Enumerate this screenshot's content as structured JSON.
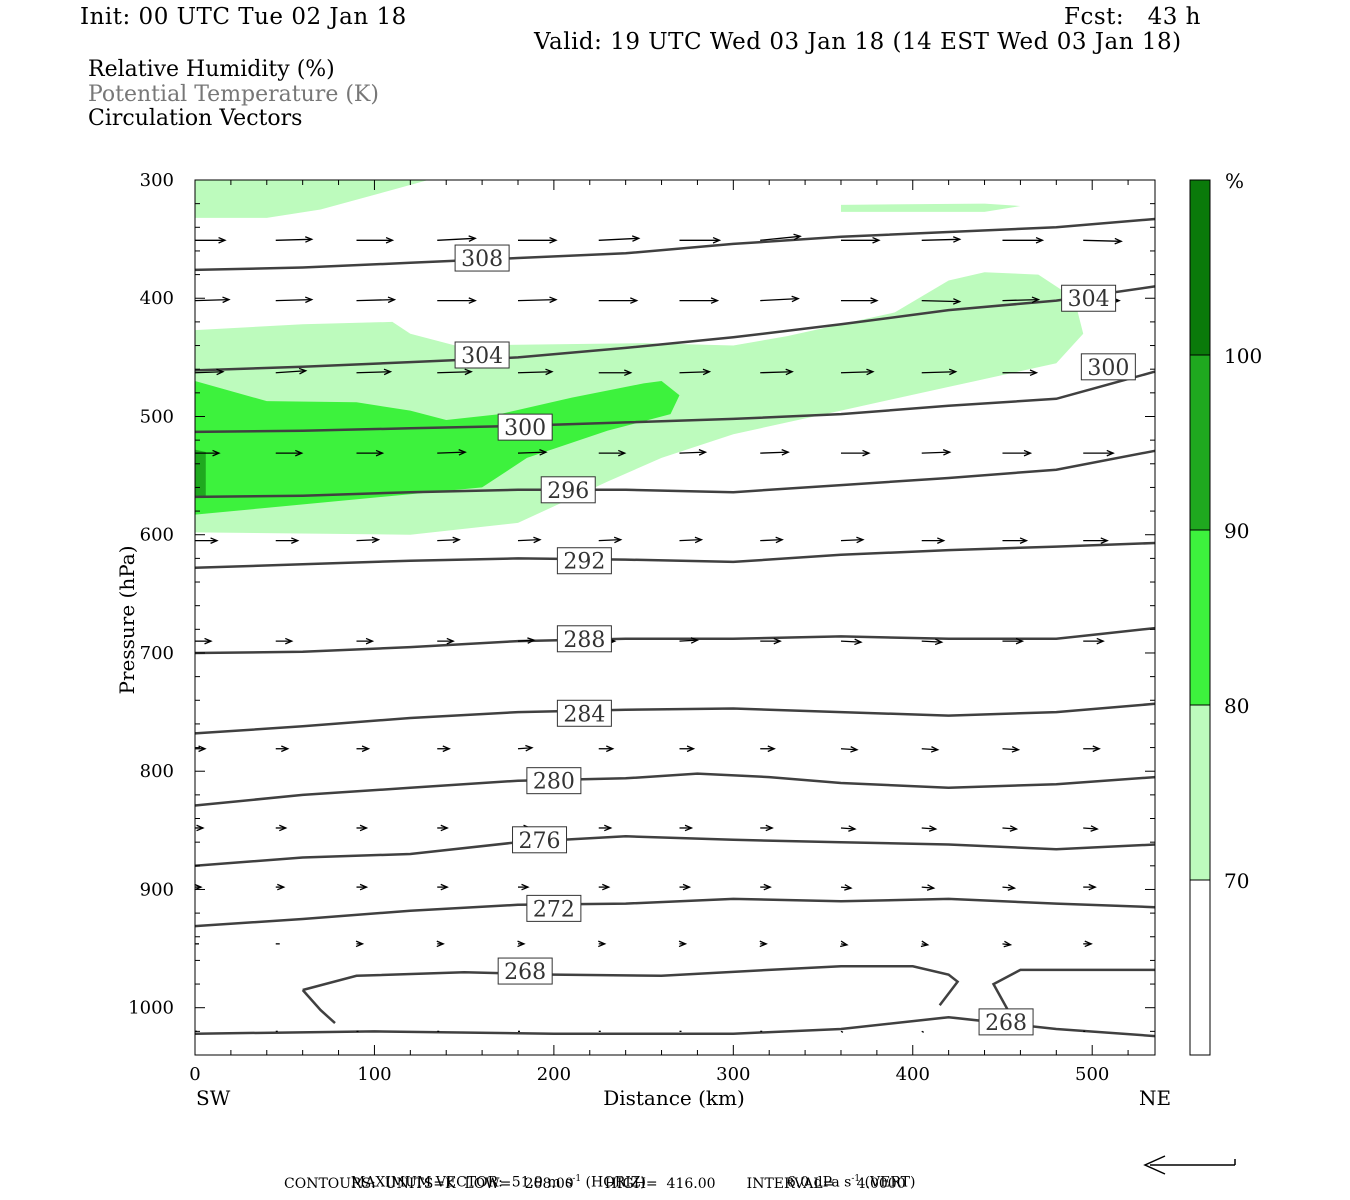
{
  "header": {
    "init": "Init: 00 UTC Tue 02 Jan 18",
    "fcst": "Fcst:   43 h",
    "valid": "Valid: 19 UTC Wed 03 Jan 18 (14 EST Wed 03 Jan 18)"
  },
  "legend": {
    "rh": "Relative Humidity (%)",
    "theta": "Potential Temperature (K)",
    "vectors": "Circulation Vectors"
  },
  "colors": {
    "rh70": "#bdfbbd",
    "rh80": "#3df23d",
    "rh90": "#1fa91f",
    "rh100": "#0a7a0a",
    "contour": "#404040"
  },
  "chart_data": {
    "type": "cross-section",
    "title": "Relative Humidity (%), Potential Temperature (K), Circulation Vectors",
    "xlabel": "Distance (km)",
    "ylabel": "Pressure (hPa)",
    "xlim": [
      0,
      535
    ],
    "ylim": [
      300,
      1040
    ],
    "x_ticks": [
      "0",
      "100",
      "200",
      "300",
      "400",
      "500"
    ],
    "y_ticks": [
      "300",
      "400",
      "500",
      "600",
      "700",
      "800",
      "900",
      "1000"
    ],
    "endpoints": {
      "left": "SW",
      "right": "NE"
    },
    "colorbar": {
      "unit": "%",
      "levels": [
        "70",
        "80",
        "90",
        "100"
      ]
    },
    "theta_contours": [
      {
        "label": "308",
        "label_x": 160,
        "label_p": 366,
        "points": [
          [
            0,
            376
          ],
          [
            60,
            374
          ],
          [
            120,
            370
          ],
          [
            180,
            366
          ],
          [
            240,
            362
          ],
          [
            300,
            354
          ],
          [
            360,
            348
          ],
          [
            420,
            344
          ],
          [
            480,
            340
          ],
          [
            535,
            333
          ]
        ]
      },
      {
        "label": "304",
        "label_x": 160,
        "label_p": 448,
        "points": [
          [
            0,
            461
          ],
          [
            60,
            458
          ],
          [
            120,
            454
          ],
          [
            180,
            450
          ],
          [
            240,
            442
          ],
          [
            300,
            433
          ],
          [
            360,
            422
          ],
          [
            420,
            410
          ],
          [
            480,
            402
          ],
          [
            535,
            390
          ]
        ]
      },
      {
        "label": "304",
        "label_x": 498,
        "label_p": 400,
        "points": []
      },
      {
        "label": "300",
        "label_x": 184,
        "label_p": 509,
        "points": [
          [
            0,
            513
          ],
          [
            60,
            512
          ],
          [
            120,
            510
          ],
          [
            180,
            508
          ],
          [
            240,
            505
          ],
          [
            300,
            502
          ],
          [
            360,
            498
          ],
          [
            420,
            491
          ],
          [
            480,
            485
          ],
          [
            535,
            462
          ]
        ]
      },
      {
        "label": "300",
        "label_x": 509,
        "label_p": 458,
        "points": []
      },
      {
        "label": "296",
        "label_x": 208,
        "label_p": 562,
        "points": [
          [
            0,
            568
          ],
          [
            60,
            567
          ],
          [
            120,
            564
          ],
          [
            180,
            562
          ],
          [
            240,
            562
          ],
          [
            300,
            564
          ],
          [
            360,
            558
          ],
          [
            420,
            552
          ],
          [
            480,
            545
          ],
          [
            535,
            529
          ]
        ]
      },
      {
        "label": "292",
        "label_x": 217,
        "label_p": 622,
        "points": [
          [
            0,
            628
          ],
          [
            60,
            625
          ],
          [
            120,
            622
          ],
          [
            180,
            620
          ],
          [
            240,
            621
          ],
          [
            300,
            623
          ],
          [
            360,
            617
          ],
          [
            420,
            613
          ],
          [
            480,
            610
          ],
          [
            535,
            607
          ]
        ]
      },
      {
        "label": "288",
        "label_x": 217,
        "label_p": 688,
        "points": [
          [
            0,
            700
          ],
          [
            60,
            699
          ],
          [
            120,
            695
          ],
          [
            180,
            690
          ],
          [
            240,
            688
          ],
          [
            300,
            688
          ],
          [
            360,
            686
          ],
          [
            420,
            688
          ],
          [
            480,
            688
          ],
          [
            535,
            679
          ]
        ]
      },
      {
        "label": "284",
        "label_x": 217,
        "label_p": 751,
        "points": [
          [
            0,
            768
          ],
          [
            60,
            762
          ],
          [
            120,
            755
          ],
          [
            180,
            750
          ],
          [
            240,
            748
          ],
          [
            300,
            747
          ],
          [
            360,
            750
          ],
          [
            420,
            753
          ],
          [
            480,
            750
          ],
          [
            535,
            743
          ]
        ]
      },
      {
        "label": "280",
        "label_x": 200,
        "label_p": 808,
        "points": [
          [
            0,
            829
          ],
          [
            60,
            820
          ],
          [
            120,
            814
          ],
          [
            180,
            808
          ],
          [
            240,
            806
          ],
          [
            280,
            802
          ],
          [
            320,
            805
          ],
          [
            360,
            810
          ],
          [
            420,
            814
          ],
          [
            480,
            811
          ],
          [
            535,
            805
          ]
        ]
      },
      {
        "label": "276",
        "label_x": 192,
        "label_p": 858,
        "points": [
          [
            0,
            880
          ],
          [
            60,
            873
          ],
          [
            120,
            870
          ],
          [
            180,
            860
          ],
          [
            240,
            855
          ],
          [
            300,
            858
          ],
          [
            360,
            860
          ],
          [
            420,
            862
          ],
          [
            480,
            866
          ],
          [
            535,
            862
          ]
        ]
      },
      {
        "label": "272",
        "label_x": 200,
        "label_p": 916,
        "points": [
          [
            0,
            931
          ],
          [
            60,
            925
          ],
          [
            120,
            918
          ],
          [
            180,
            913
          ],
          [
            240,
            912
          ],
          [
            300,
            908
          ],
          [
            360,
            910
          ],
          [
            420,
            908
          ],
          [
            480,
            912
          ],
          [
            535,
            915
          ]
        ]
      },
      {
        "label": "268",
        "label_x": 184,
        "label_p": 969,
        "points": []
      },
      {
        "label": "268",
        "label_x": 452,
        "label_p": 1012,
        "points": [
          [
            0,
            1022
          ],
          [
            100,
            1020
          ],
          [
            200,
            1022
          ],
          [
            300,
            1022
          ],
          [
            360,
            1018
          ],
          [
            420,
            1008
          ],
          [
            480,
            1018
          ],
          [
            535,
            1024
          ]
        ]
      }
    ],
    "rh_regions": [
      {
        "level": "70-80",
        "points": [
          [
            0,
            300
          ],
          [
            80,
            300
          ],
          [
            130,
            300
          ],
          [
            70,
            325
          ],
          [
            40,
            332
          ],
          [
            0,
            332
          ]
        ]
      },
      {
        "level": "70-80",
        "points": [
          [
            360,
            321
          ],
          [
            440,
            320
          ],
          [
            460,
            322
          ],
          [
            440,
            327
          ],
          [
            360,
            327
          ]
        ]
      },
      {
        "level": "70-80",
        "points": [
          [
            0,
            427
          ],
          [
            60,
            422
          ],
          [
            110,
            420
          ],
          [
            120,
            430
          ],
          [
            145,
            440
          ],
          [
            250,
            438
          ],
          [
            300,
            440
          ],
          [
            330,
            432
          ],
          [
            390,
            412
          ],
          [
            420,
            385
          ],
          [
            440,
            378
          ],
          [
            470,
            380
          ],
          [
            490,
            400
          ],
          [
            495,
            430
          ],
          [
            480,
            455
          ],
          [
            420,
            475
          ],
          [
            360,
            495
          ],
          [
            300,
            515
          ],
          [
            260,
            535
          ],
          [
            230,
            555
          ],
          [
            180,
            590
          ],
          [
            120,
            600
          ],
          [
            0,
            598
          ]
        ]
      },
      {
        "level": "80-90",
        "points": [
          [
            0,
            470
          ],
          [
            40,
            487
          ],
          [
            90,
            488
          ],
          [
            120,
            495
          ],
          [
            140,
            503
          ],
          [
            170,
            498
          ],
          [
            210,
            484
          ],
          [
            250,
            472
          ],
          [
            260,
            470
          ],
          [
            270,
            482
          ],
          [
            265,
            498
          ],
          [
            230,
            512
          ],
          [
            185,
            535
          ],
          [
            160,
            560
          ],
          [
            0,
            583
          ]
        ]
      },
      {
        "level": "90-100",
        "points": [
          [
            0,
            528
          ],
          [
            6,
            530
          ],
          [
            6,
            567
          ],
          [
            0,
            568
          ]
        ]
      }
    ],
    "vector_rows": [
      {
        "pressure": 351,
        "u": [
          30,
          36,
          36,
          38,
          38,
          40,
          40,
          40,
          38,
          38,
          40,
          38,
          36
        ],
        "w": [
          0,
          -1,
          0,
          -2,
          0,
          -2,
          0,
          -4,
          0,
          -1,
          0,
          1,
          -1
        ]
      },
      {
        "pressure": 402,
        "u": [
          34,
          36,
          38,
          38,
          38,
          38,
          38,
          38,
          36,
          38,
          36,
          36,
          28
        ],
        "w": [
          -1,
          -1,
          -1,
          0,
          -1,
          0,
          0,
          -2,
          0,
          1,
          -1,
          0,
          0
        ]
      },
      {
        "pressure": 463,
        "u": [
          28,
          30,
          34,
          34,
          34,
          32,
          30,
          32,
          32,
          34,
          34,
          36,
          30
        ],
        "w": [
          -1,
          -2,
          -1,
          -1,
          -1,
          0,
          -1,
          -1,
          -1,
          -1,
          0,
          -1,
          0
        ]
      },
      {
        "pressure": 531,
        "u": [
          24,
          26,
          26,
          28,
          28,
          26,
          26,
          28,
          28,
          28,
          28,
          30,
          30
        ],
        "w": [
          0,
          0,
          0,
          -1,
          -1,
          0,
          -1,
          -1,
          0,
          -1,
          0,
          0,
          1
        ]
      },
      {
        "pressure": 605,
        "u": [
          22,
          22,
          22,
          22,
          22,
          22,
          22,
          22,
          22,
          22,
          24,
          24,
          24
        ],
        "w": [
          0,
          0,
          -1,
          -1,
          -1,
          -1,
          -1,
          -1,
          -1,
          0,
          0,
          0,
          1
        ]
      },
      {
        "pressure": 690,
        "u": [
          16,
          16,
          16,
          16,
          16,
          16,
          18,
          20,
          20,
          20,
          20,
          20,
          22
        ],
        "w": [
          0,
          0,
          0,
          0,
          -1,
          0,
          -1,
          0,
          1,
          1,
          0,
          0,
          1
        ]
      },
      {
        "pressure": 781,
        "u": [
          10,
          12,
          12,
          12,
          14,
          14,
          14,
          14,
          16,
          16,
          16,
          16,
          16
        ],
        "w": [
          0,
          0,
          0,
          0,
          -1,
          0,
          0,
          0,
          1,
          1,
          1,
          0,
          0
        ]
      },
      {
        "pressure": 848,
        "u": [
          8,
          10,
          10,
          10,
          12,
          12,
          12,
          12,
          14,
          14,
          14,
          14,
          12
        ],
        "w": [
          0,
          0,
          0,
          0,
          0,
          0,
          0,
          0,
          1,
          1,
          1,
          1,
          0
        ]
      },
      {
        "pressure": 898,
        "u": [
          6,
          8,
          10,
          10,
          10,
          10,
          10,
          10,
          10,
          12,
          12,
          12,
          10
        ],
        "w": [
          0,
          0,
          0,
          0,
          0,
          0,
          0,
          0,
          1,
          1,
          1,
          0,
          0
        ]
      },
      {
        "pressure": 946,
        "u": [
          4,
          4,
          6,
          6,
          6,
          6,
          6,
          6,
          6,
          6,
          8,
          8,
          8
        ],
        "w": [
          0,
          0,
          0,
          0,
          0,
          0,
          0,
          0,
          1,
          1,
          1,
          0,
          0
        ]
      },
      {
        "pressure": 1020,
        "u": [
          2,
          2,
          2,
          2,
          2,
          2,
          2,
          2,
          2,
          2,
          2,
          2,
          2
        ],
        "w": [
          0,
          0,
          0,
          0,
          0,
          0,
          0,
          0,
          1,
          1,
          0,
          0,
          0
        ]
      }
    ]
  },
  "footer": {
    "max_vector": "MAXIMUM VECTOR:  51.9 m s",
    "horiz_sup": "-1",
    "horiz_unit": " (HORIZ)",
    "vert": "6.0 dPa s",
    "vert_sup": "-1",
    "vert_unit": " (VERT)",
    "contours": "CONTOURS:  UNITS=K  LOW=   268.00       HIGH=  416.00       INTERVAL=     4.0000"
  }
}
